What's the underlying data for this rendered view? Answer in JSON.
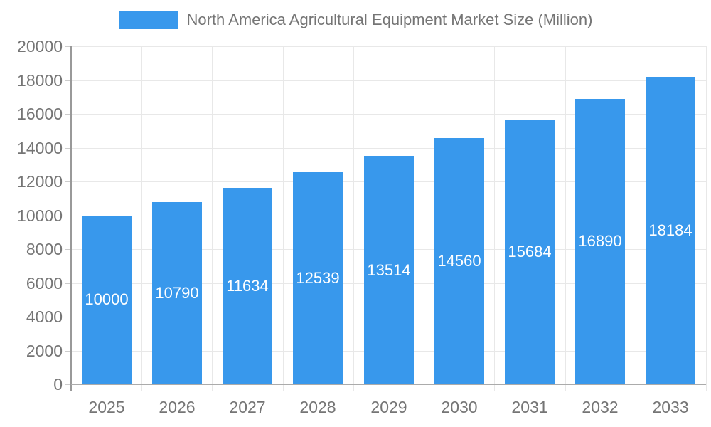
{
  "chart_data": {
    "type": "bar",
    "title": "North America Agricultural Equipment Market Size (Million)",
    "legend_entries": [
      "North America Agricultural Equipment Market Size (Million)"
    ],
    "legend_position": "top",
    "categories": [
      "2025",
      "2026",
      "2027",
      "2028",
      "2029",
      "2030",
      "2031",
      "2032",
      "2033"
    ],
    "values": [
      10000,
      10790,
      11634,
      12539,
      13514,
      14560,
      15684,
      16890,
      18184
    ],
    "xlabel": "",
    "ylabel": "",
    "ylim": [
      0,
      20000
    ],
    "y_tick_step": 2000,
    "y_tick_labels": [
      "0",
      "2000",
      "4000",
      "6000",
      "8000",
      "10000",
      "12000",
      "14000",
      "16000",
      "18000",
      "20000"
    ],
    "grid": true,
    "data_labels_inside_bars": true,
    "colors": {
      "bar": "#3898EC",
      "data_label": "#FFFFFF",
      "axis_text": "#757575",
      "legend_text": "#757575",
      "gridline": "#E8E8E8",
      "tick": "#CCCCCC",
      "y_axis_line": "#999999",
      "x_axis_line": "#ABABAB",
      "background": "#FFFFFF"
    }
  }
}
